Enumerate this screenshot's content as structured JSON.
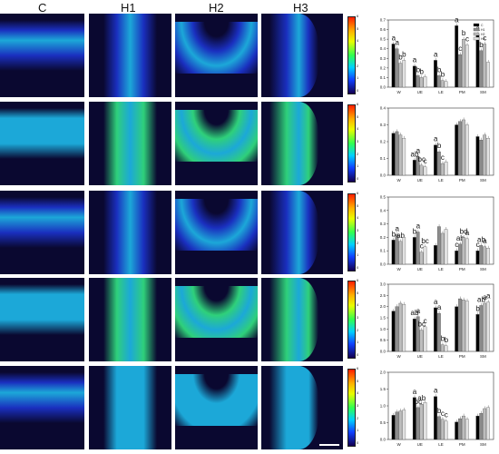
{
  "column_headers": [
    "C",
    "H1",
    "H2",
    "H3"
  ],
  "panel_colors": {
    "dark": "#0a0830",
    "blue": "#1a2fbf",
    "cyan": "#1ca8d8",
    "green": "#2fd07a"
  },
  "rows": [
    {
      "intensity": "low"
    },
    {
      "intensity": "high"
    },
    {
      "intensity": "low"
    },
    {
      "intensity": "high"
    },
    {
      "intensity": "medium"
    }
  ],
  "colorbar_ticks": [
    [
      "6",
      "5",
      "4",
      "3",
      "2",
      "1",
      "0"
    ],
    [
      "6",
      "5",
      "4",
      "3",
      "2",
      "1",
      "0"
    ],
    [
      "6",
      "5",
      "4",
      "3",
      "2",
      "1",
      "0"
    ],
    [
      "6",
      "5",
      "4",
      "3",
      "2",
      "1",
      "0"
    ],
    [
      "6",
      "5",
      "4",
      "3",
      "2",
      "1",
      "0"
    ]
  ],
  "legend": [
    "C",
    "H1",
    "H2",
    "H3"
  ],
  "chart_data": [
    {
      "type": "bar",
      "categories": [
        "W",
        "UE",
        "LE",
        "PM",
        "SM"
      ],
      "ylim": [
        0,
        0.7
      ],
      "yticks": [
        "0.0",
        "0.1",
        "0.2",
        "0.3",
        "0.4",
        "0.5",
        "0.6",
        "0.7"
      ],
      "series": [
        {
          "name": "C",
          "values": [
            0.45,
            0.22,
            0.28,
            0.64,
            0.55
          ]
        },
        {
          "name": "H1",
          "values": [
            0.4,
            0.12,
            0.12,
            0.34,
            0.38
          ]
        },
        {
          "name": "H2",
          "values": [
            0.25,
            0.1,
            0.07,
            0.5,
            0.45
          ]
        },
        {
          "name": "H3",
          "values": [
            0.28,
            0.11,
            0.06,
            0.44,
            0.26
          ]
        }
      ],
      "letters": [
        [
          "a",
          "a",
          "b",
          "b"
        ],
        [
          "a",
          "b",
          "b",
          ""
        ],
        [
          "a",
          "b",
          "b",
          ""
        ],
        [
          "a",
          "c",
          "b",
          "c"
        ],
        [
          "a",
          "b",
          "c",
          ""
        ]
      ]
    },
    {
      "type": "bar",
      "categories": [
        "W",
        "UE",
        "LE",
        "PM",
        "SM"
      ],
      "ylim": [
        0,
        0.4
      ],
      "yticks": [
        "0.0",
        "0.1",
        "0.2",
        "0.3",
        "0.4"
      ],
      "series": [
        {
          "name": "C",
          "values": [
            0.25,
            0.09,
            0.18,
            0.3,
            0.23
          ]
        },
        {
          "name": "H1",
          "values": [
            0.26,
            0.11,
            0.14,
            0.32,
            0.21
          ]
        },
        {
          "name": "H2",
          "values": [
            0.24,
            0.06,
            0.07,
            0.33,
            0.24
          ]
        },
        {
          "name": "H3",
          "values": [
            0.22,
            0.05,
            0.08,
            0.3,
            0.22
          ]
        }
      ],
      "letters": [
        [],
        [
          "ab",
          "a",
          "bc",
          "c"
        ],
        [
          "a",
          "b",
          "c",
          ""
        ],
        [],
        []
      ]
    },
    {
      "type": "bar",
      "categories": [
        "W",
        "UE",
        "LE",
        "PM",
        "SM"
      ],
      "ylim": [
        0,
        0.5
      ],
      "yticks": [
        "0.0",
        "0.1",
        "0.2",
        "0.3",
        "0.4",
        "0.5"
      ],
      "series": [
        {
          "name": "C",
          "values": [
            0.18,
            0.2,
            0.14,
            0.1,
            0.1
          ]
        },
        {
          "name": "H1",
          "values": [
            0.22,
            0.24,
            0.28,
            0.15,
            0.14
          ]
        },
        {
          "name": "H2",
          "values": [
            0.17,
            0.09,
            0.23,
            0.2,
            0.13
          ]
        },
        {
          "name": "H3",
          "values": [
            0.2,
            0.13,
            0.26,
            0.19,
            0.12
          ]
        }
      ],
      "letters": [
        [
          "b",
          "a",
          "ab",
          ""
        ],
        [
          "b",
          "a",
          "c",
          "bc"
        ],
        [],
        [
          "c",
          "ab",
          "bd",
          "a"
        ],
        [
          "c",
          "ab",
          "a",
          ""
        ]
      ]
    },
    {
      "type": "bar",
      "categories": [
        "W",
        "UE",
        "LE",
        "PM",
        "SM"
      ],
      "ylim": [
        0,
        3.0
      ],
      "yticks": [
        "0.0",
        "0.5",
        "1.0",
        "1.5",
        "2.0",
        "2.5",
        "3.0"
      ],
      "series": [
        {
          "name": "C",
          "values": [
            1.8,
            1.45,
            1.95,
            2.0,
            1.65
          ]
        },
        {
          "name": "H1",
          "values": [
            2.0,
            1.55,
            1.7,
            2.35,
            2.05
          ]
        },
        {
          "name": "H2",
          "values": [
            2.15,
            0.95,
            0.3,
            2.3,
            2.15
          ]
        },
        {
          "name": "H3",
          "values": [
            2.1,
            1.1,
            0.25,
            2.25,
            2.2
          ]
        }
      ],
      "letters": [
        [],
        [
          "ab",
          "a",
          "bc",
          "c"
        ],
        [
          "a",
          "a",
          "b",
          "b"
        ],
        [],
        [
          "b",
          "ab",
          "a",
          "a"
        ]
      ]
    },
    {
      "type": "bar",
      "categories": [
        "W",
        "UE",
        "LE",
        "PM",
        "SM"
      ],
      "ylim": [
        0,
        2.0
      ],
      "yticks": [
        "0.0",
        "0.5",
        "1.0",
        "1.5",
        "2.0"
      ],
      "series": [
        {
          "name": "C",
          "values": [
            0.72,
            1.25,
            1.28,
            0.52,
            0.7
          ]
        },
        {
          "name": "H1",
          "values": [
            0.82,
            0.95,
            0.68,
            0.62,
            0.78
          ]
        },
        {
          "name": "H2",
          "values": [
            0.85,
            1.05,
            0.6,
            0.7,
            0.92
          ]
        },
        {
          "name": "H3",
          "values": [
            0.88,
            1.1,
            0.55,
            0.6,
            0.95
          ]
        }
      ],
      "letters": [
        [],
        [
          "a",
          "bc",
          "ab",
          ""
        ],
        [
          "a",
          "b",
          "c",
          "c"
        ],
        [],
        []
      ]
    }
  ]
}
